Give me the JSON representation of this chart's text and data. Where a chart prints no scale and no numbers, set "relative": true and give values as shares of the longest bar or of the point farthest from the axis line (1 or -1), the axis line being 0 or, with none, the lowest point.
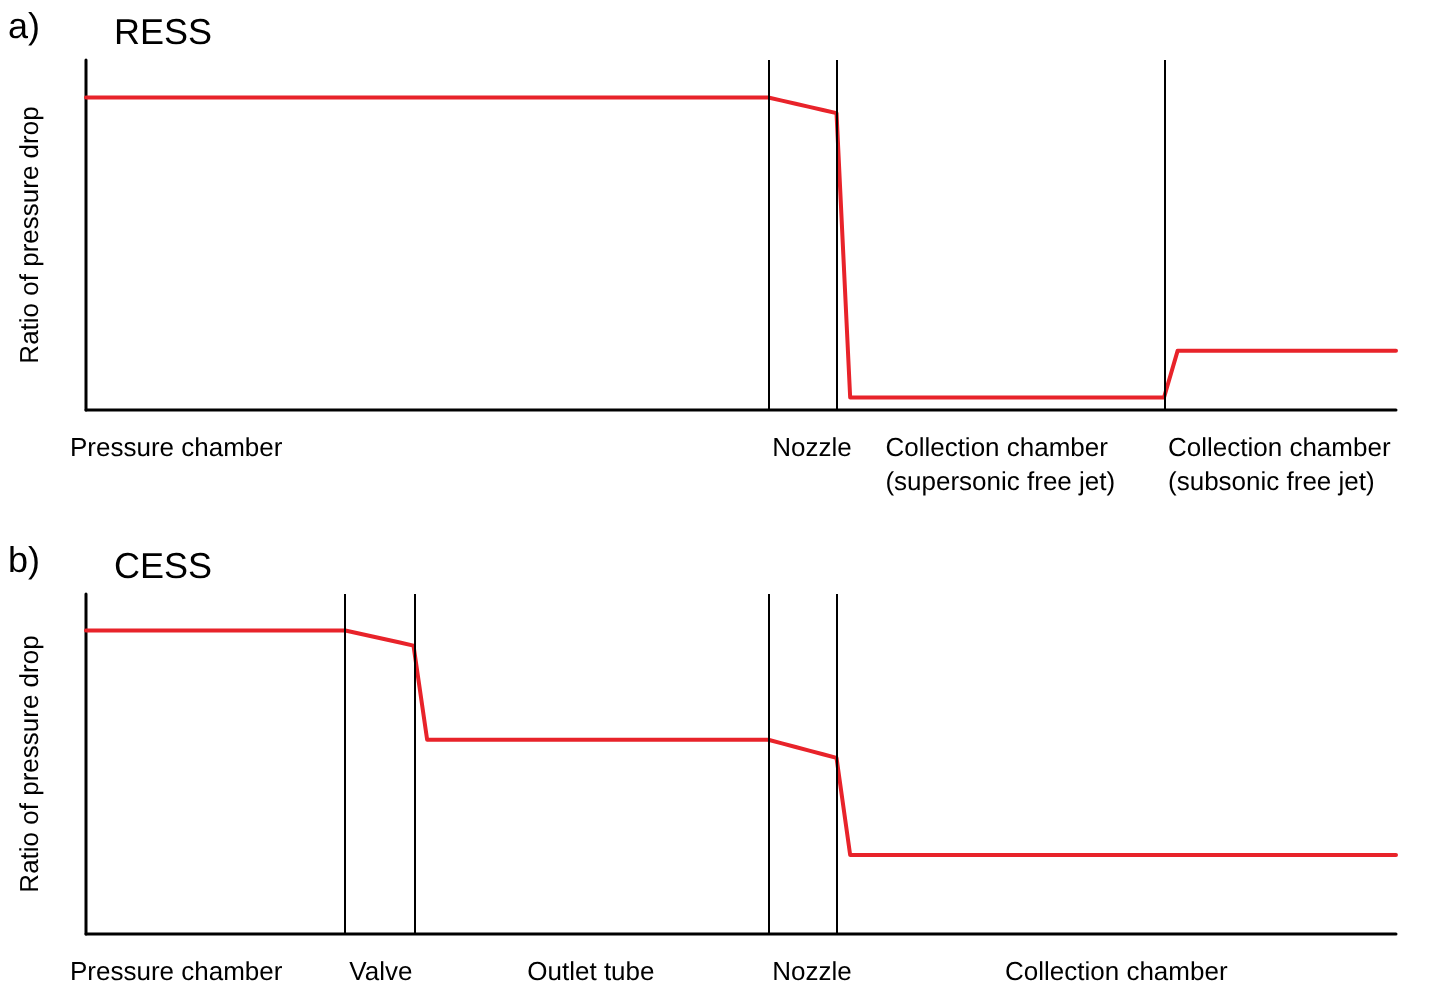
{
  "chart_data": [
    {
      "type": "line",
      "title": "RESS",
      "ylabel": "Ratio of pressure drop",
      "relative": true,
      "line_style": "solid",
      "grid": "x",
      "categories": [
        null,
        null,
        null,
        null,
        null,
        null,
        null,
        null,
        null,
        null,
        null,
        null,
        null,
        null,
        null,
        null,
        null,
        null,
        null,
        null,
        null,
        null,
        null,
        null,
        null,
        null,
        null,
        null,
        null,
        null,
        null,
        null,
        null,
        null,
        null,
        null,
        null,
        null,
        null,
        null,
        null,
        null,
        null,
        null,
        null,
        null,
        null,
        null,
        null,
        null,
        null,
        null,
        null,
        null,
        null,
        null,
        null,
        null,
        null,
        null,
        null,
        null,
        null,
        null,
        null,
        null,
        null,
        null,
        null,
        null,
        null,
        null,
        null,
        null,
        null,
        null,
        null,
        null,
        null,
        null,
        null,
        null,
        null,
        null,
        null,
        null,
        null,
        null,
        null,
        null,
        null,
        null,
        null,
        null,
        null,
        null,
        null
      ],
      "series": [
        {
          "color": "#e8232a",
          "values": [
            1,
            1,
            1,
            1,
            1,
            1,
            1,
            1,
            1,
            1,
            1,
            1,
            1,
            1,
            1,
            1,
            1,
            1,
            1,
            1,
            1,
            1,
            1,
            1,
            1,
            1,
            1,
            1,
            1,
            1,
            1,
            1,
            1,
            1,
            1,
            1,
            1,
            1,
            1,
            1,
            1,
            1,
            1,
            1,
            1,
            1,
            1,
            1,
            1,
            1,
            1,
            0.99,
            0.98,
            0.97,
            0.96,
            0.95,
            0.04,
            0.04,
            0.04,
            0.04,
            0.04,
            0.04,
            0.04,
            0.04,
            0.04,
            0.04,
            0.04,
            0.04,
            0.04,
            0.04,
            0.04,
            0.04,
            0.04,
            0.04,
            0.04,
            0.04,
            0.04,
            0.04,
            0.04,
            0.04,
            0.19,
            0.19,
            0.19,
            0.19,
            0.19,
            0.19,
            0.19,
            0.19,
            0.19,
            0.19,
            0.19,
            0.19,
            0.19,
            0.19,
            0.19,
            0.19,
            0.19
          ]
        }
      ],
      "annotations": [
        "a)",
        "Pressure chamber",
        "Nozzle",
        "Collection chamber\n(supersonic free jet)",
        "Collection chamber\n(subsonic free jet)"
      ]
    },
    {
      "type": "line",
      "title": "CESS",
      "ylabel": "Ratio of pressure drop",
      "relative": true,
      "line_style": "solid",
      "grid": "x",
      "categories": [
        null,
        null,
        null,
        null,
        null,
        null,
        null,
        null,
        null,
        null,
        null,
        null,
        null,
        null,
        null,
        null,
        null,
        null,
        null,
        null,
        null,
        null,
        null,
        null,
        null,
        null,
        null,
        null,
        null,
        null,
        null,
        null,
        null,
        null,
        null,
        null,
        null,
        null,
        null,
        null,
        null,
        null,
        null,
        null,
        null,
        null,
        null,
        null,
        null,
        null,
        null,
        null,
        null,
        null,
        null,
        null,
        null,
        null,
        null,
        null,
        null,
        null,
        null,
        null,
        null,
        null,
        null,
        null,
        null,
        null,
        null,
        null,
        null,
        null,
        null,
        null,
        null,
        null,
        null,
        null,
        null,
        null,
        null,
        null,
        null,
        null,
        null,
        null,
        null,
        null,
        null,
        null,
        null,
        null,
        null,
        null,
        null
      ],
      "series": [
        {
          "color": "#e8232a",
          "values": [
            1,
            1,
            1,
            1,
            1,
            1,
            1,
            1,
            1,
            1,
            1,
            1,
            1,
            1,
            1,
            1,
            1,
            1,
            1,
            1,
            0.99,
            0.98,
            0.97,
            0.96,
            0.95,
            0.64,
            0.64,
            0.64,
            0.64,
            0.64,
            0.64,
            0.64,
            0.64,
            0.64,
            0.64,
            0.64,
            0.64,
            0.64,
            0.64,
            0.64,
            0.64,
            0.64,
            0.64,
            0.64,
            0.64,
            0.64,
            0.64,
            0.64,
            0.64,
            0.64,
            0.64,
            0.628,
            0.616,
            0.604,
            0.592,
            0.58,
            0.26,
            0.26,
            0.26,
            0.26,
            0.26,
            0.26,
            0.26,
            0.26,
            0.26,
            0.26,
            0.26,
            0.26,
            0.26,
            0.26,
            0.26,
            0.26,
            0.26,
            0.26,
            0.26,
            0.26,
            0.26,
            0.26,
            0.26,
            0.26,
            0.26,
            0.26,
            0.26,
            0.26,
            0.26,
            0.26,
            0.26,
            0.26,
            0.26,
            0.26,
            0.26,
            0.26,
            0.26,
            0.26,
            0.26,
            0.26,
            0.26
          ]
        }
      ],
      "annotations": [
        "b)",
        "Pressure chamber",
        "Valve",
        "Outlet tube",
        "Nozzle",
        "Collection chamber"
      ]
    }
  ]
}
